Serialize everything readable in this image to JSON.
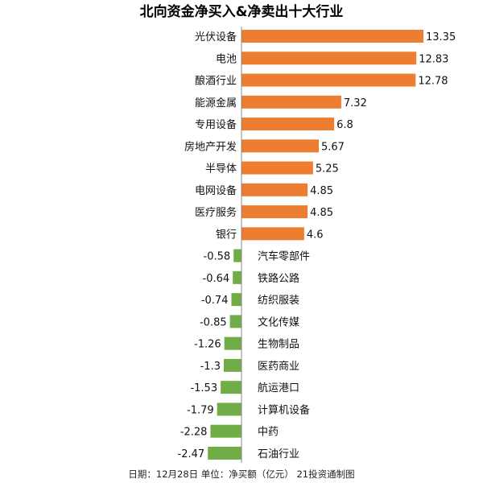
{
  "chart_data": {
    "type": "bar",
    "orientation": "horizontal",
    "title": "北向资金净买入&净卖出十大行业",
    "note": "日期：12月28日 单位：净买额（亿元） 21投资通制图",
    "categories": [
      "光伏设备",
      "电池",
      "酿酒行业",
      "能源金属",
      "专用设备",
      "房地产开发",
      "半导体",
      "电网设备",
      "医疗服务",
      "银行",
      "汽车零部件",
      "铁路公路",
      "纺织服装",
      "文化传媒",
      "生物制品",
      "医药商业",
      "航运港口",
      "计算机设备",
      "中药",
      "石油行业"
    ],
    "values": [
      13.35,
      12.83,
      12.78,
      7.32,
      6.8,
      5.67,
      5.25,
      4.85,
      4.85,
      4.6,
      -0.58,
      -0.64,
      -0.74,
      -0.85,
      -1.26,
      -1.3,
      -1.53,
      -1.79,
      -2.28,
      -2.47
    ],
    "value_labels": [
      "13.35",
      "12.83",
      "12.78",
      "7.32",
      "6.8",
      "5.67",
      "5.25",
      "4.85",
      "4.85",
      "4.6",
      "-0.58",
      "-0.64",
      "-0.74",
      "-0.85",
      "-1.26",
      "-1.3",
      "-1.53",
      "-1.79",
      "-2.28",
      "-2.47"
    ],
    "colors": {
      "positive": "#ED7D31",
      "negative": "#70AD47"
    },
    "xlim": [
      -2.47,
      13.35
    ],
    "grid": false,
    "legend": "none"
  }
}
